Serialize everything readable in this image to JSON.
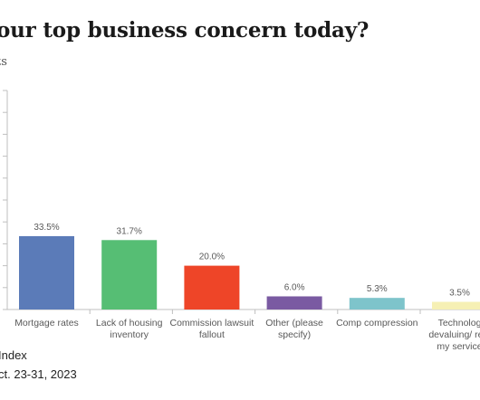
{
  "chart_data": {
    "type": "bar",
    "title": "our top business concern today?",
    "subtitle": "ts",
    "categories": [
      [
        "Mortgage rates"
      ],
      [
        "Lack of housing",
        "inventory"
      ],
      [
        "Commission lawsuit",
        "fallout"
      ],
      [
        "Other (please",
        "specify)"
      ],
      [
        "Comp compression"
      ],
      [
        "Technolog",
        "devaluing/ repl",
        "my service"
      ]
    ],
    "values": [
      33.5,
      31.7,
      20.0,
      6.0,
      5.3,
      3.5
    ],
    "data_labels": [
      "33.5%",
      "31.7%",
      "20.0%",
      "6.0%",
      "5.3%",
      "3.5%"
    ],
    "colors": [
      "#5b7bb8",
      "#56be74",
      "#ee4528",
      "#7a5aa2",
      "#7ec4cb",
      "#f6f0b4"
    ],
    "ylim": [
      0,
      100
    ],
    "grid": false,
    "legend": "none",
    "xlabel": "",
    "ylabel": ""
  },
  "footer": {
    "source": "Index",
    "dates": "ct. 23-31, 2023"
  }
}
